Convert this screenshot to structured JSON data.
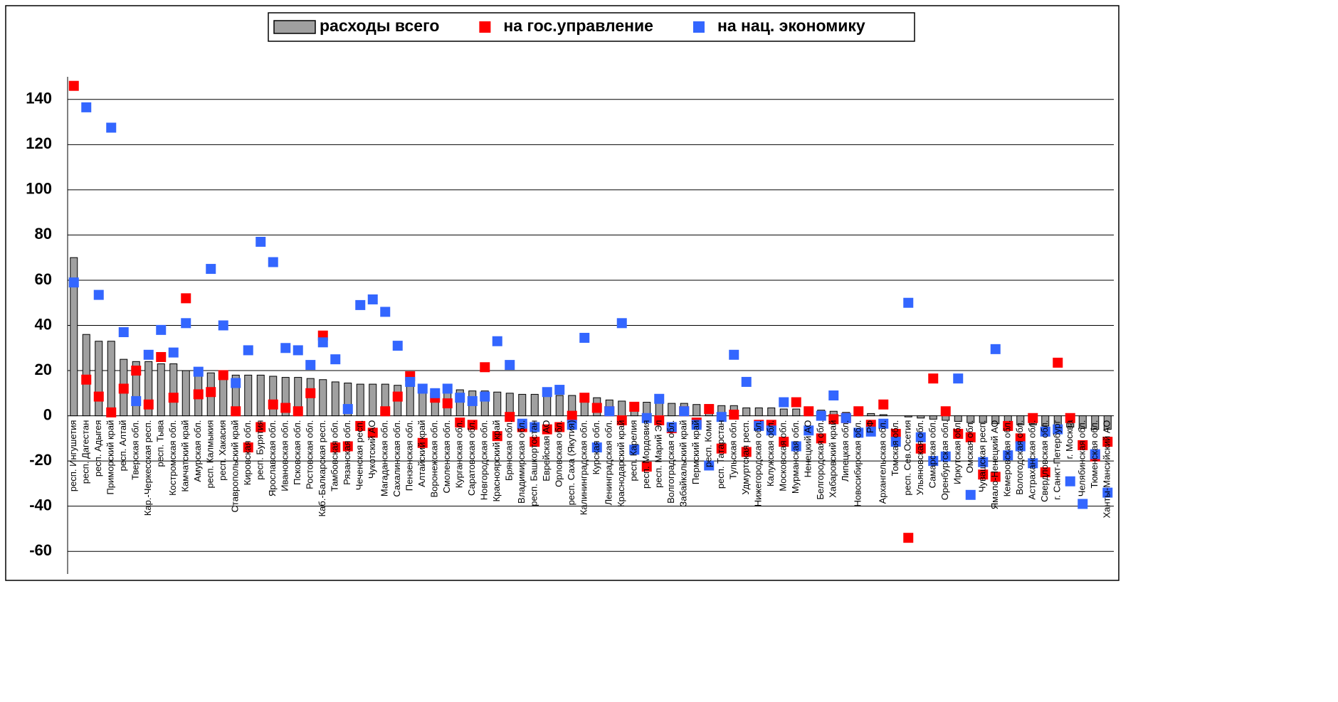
{
  "chart_data": {
    "type": "bar",
    "categories": [
      "респ. Ингушетия",
      "респ. Дагестан",
      "респ. Адыгея",
      "Приморский край",
      "респ. Алтай",
      "Тверская обл.",
      "Кар.-Черкесская респ.",
      "респ. Тыва",
      "Костромская обл.",
      "Камчатский край",
      "Амурская обл.",
      "респ. Калмыкия",
      "респ. Хакасия",
      "Ставропольский край",
      "Кировская обл.",
      "респ. Бурятия",
      "Ярославская обл.",
      "Ивановская обл.",
      "Псковская обл.",
      "Ростовская обл.",
      "Каб.-Балкарская респ.",
      "Тамбовская обл.",
      "Рязанская обл.",
      "Чеченская респ.",
      "Чукотский АО",
      "Магаданская обл.",
      "Сахалинская обл.",
      "Пензенская обл.",
      "Алтайский край",
      "Воронежская обл.",
      "Смоленская обл.",
      "Курганская обл.",
      "Саратовская обл.",
      "Новгородская обл.",
      "Красноярский край",
      "Брянская обл.",
      "Владимирская обл.",
      "респ. Башкортостан",
      "Еврейская АО",
      "Орловская обл.",
      "респ. Саха (Якутия)",
      "Калининградская обл.",
      "Курская обл.",
      "Ленинградская обл.",
      "Краснодарский край",
      "респ. Карелия",
      "респ. Мордовия",
      "респ. Марий Эл",
      "Волгоградская обл.",
      "Забайкальский край",
      "Пермский край",
      "респ. Коми",
      "респ. Татарстан",
      "Тульская обл.",
      "Удмуртская респ.",
      "Нижегородская обл.",
      "Калужская обл.",
      "Московская обл.",
      "Мурманская обл.",
      "Ненецкий АО",
      "Белгородская обл.",
      "Хабаровский край",
      "Липецкая обл.",
      "Новосибирская обл.",
      "РФ",
      "Архангельская обл.",
      "Томская обл.",
      "респ. Сев.Осетия",
      "Ульяновская обл.",
      "Самарская обл.",
      "Оренбургская обл.",
      "Иркутская обл.",
      "Омская обл.",
      "Чувашская респ.",
      "Ямало-Ненецкий АО",
      "Кемеровская обл.",
      "Вологодская обл.",
      "Астраханская обл.",
      "Свердловская обл.",
      "г. Санкт-Петербург",
      "г. Москва",
      "Челябинская обл.",
      "Тюменская обл.",
      "Ханты-Мансийский АО"
    ],
    "series": [
      {
        "name": "расходы всего",
        "style": "bar",
        "color": "#a0a0a0",
        "values": [
          70,
          36,
          33,
          33,
          25,
          24,
          24,
          23,
          23,
          20,
          19,
          19,
          19,
          18,
          18,
          18,
          17.5,
          17,
          17,
          16.5,
          16,
          15,
          14.5,
          14,
          14,
          14,
          13.5,
          13,
          12.5,
          12,
          12,
          11.5,
          11,
          11,
          10.5,
          10,
          9.5,
          9.5,
          9.5,
          9,
          9,
          8.5,
          8,
          7,
          6.5,
          6,
          6,
          6,
          5.5,
          5.5,
          5,
          5,
          4.5,
          4.5,
          3.5,
          3.5,
          3.5,
          3,
          3,
          3,
          2.5,
          2,
          1.5,
          1,
          1,
          0.5,
          0,
          -0.5,
          -1,
          -1.5,
          -2,
          -2.5,
          -3,
          -3,
          -3.5,
          -3.5,
          -4,
          -4,
          -4.5,
          -5,
          -5,
          -5.5,
          -6,
          -6
        ]
      },
      {
        "name": "на гос.управление",
        "style": "square",
        "color": "#ff0000",
        "values": [
          146,
          16,
          8.5,
          1.5,
          12,
          20,
          5,
          26,
          8,
          52,
          9.5,
          10.5,
          18,
          2,
          -14,
          -5,
          5,
          3.5,
          2,
          10,
          35.5,
          -14,
          -13.5,
          -4.5,
          -7.5,
          2,
          8.5,
          17.5,
          -12,
          8,
          5.5,
          -3,
          -4,
          21.5,
          -9,
          -0.5,
          -5,
          -11.5,
          -6,
          -5,
          0,
          8,
          3.5,
          2,
          -2,
          4,
          -22.5,
          -2,
          -5.5,
          2,
          -3,
          3,
          -14.5,
          0.5,
          -16,
          -4,
          -4,
          -11.5,
          6,
          2,
          -10,
          -1.5,
          -1,
          2,
          -4,
          5,
          -8,
          -54,
          -14.5,
          16.5,
          2,
          -8,
          -9.5,
          -26,
          -27,
          -4.5,
          -10,
          -1,
          -25,
          23.5,
          -1,
          -13,
          -18,
          -11.5
        ]
      },
      {
        "name": "на нац. экономику",
        "style": "square",
        "color": "#3366ff",
        "values": [
          59,
          136.5,
          53.5,
          127.5,
          37,
          6.5,
          27,
          38,
          28,
          41,
          19.5,
          65,
          40,
          14.5,
          29,
          77,
          68,
          30,
          29,
          22.5,
          32.5,
          25,
          3,
          49,
          51.5,
          46,
          31,
          15,
          12,
          10,
          12,
          8,
          6.5,
          8.5,
          33,
          22.5,
          -3.5,
          -5,
          10.5,
          11.5,
          -4,
          34.5,
          -14,
          2,
          41,
          -15,
          -1,
          7.5,
          -5,
          2,
          -4,
          -22,
          -0.5,
          27,
          15,
          -4.5,
          -6.5,
          6,
          -13.5,
          -6.5,
          0,
          9,
          -1,
          -7.5,
          -7,
          -3.5,
          -11.5,
          50,
          -9.5,
          -20,
          -18,
          16.5,
          -35,
          -20.5,
          29.5,
          -17.5,
          -13.5,
          -21,
          -7,
          -6,
          -29,
          -39,
          -17,
          -34
        ]
      }
    ],
    "ylim": [
      -70,
      150
    ],
    "yticks": [
      -60,
      -40,
      -20,
      0,
      20,
      40,
      60,
      80,
      100,
      120,
      140
    ],
    "grid": true
  }
}
